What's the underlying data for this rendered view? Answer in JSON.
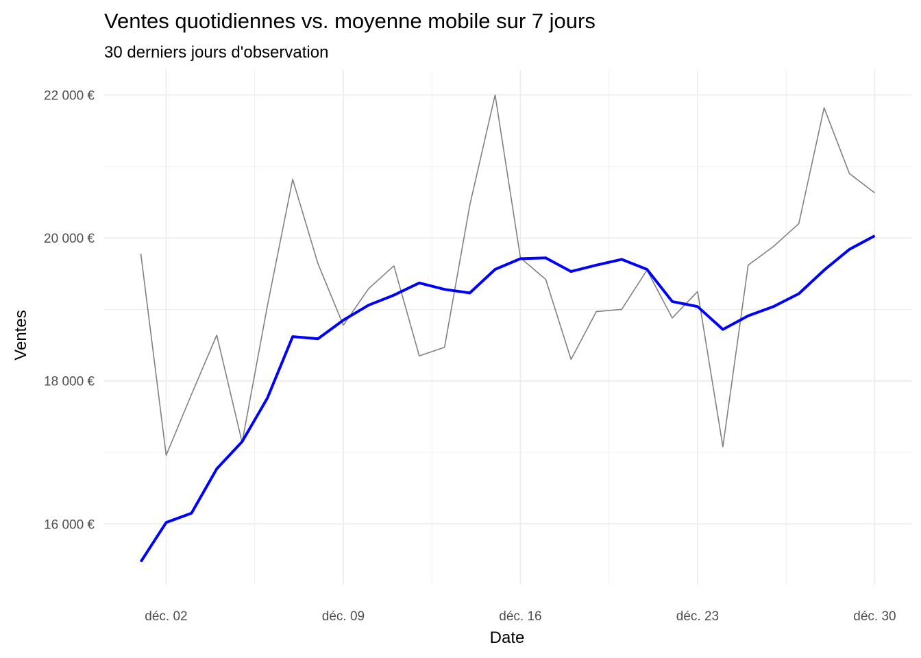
{
  "chart_data": {
    "type": "line",
    "title": "Ventes quotidiennes vs. moyenne mobile sur 7 jours",
    "subtitle": "30 derniers jours d'observation",
    "xlabel": "Date",
    "ylabel": "Ventes",
    "x": [
      "2024-12-01",
      "2024-12-02",
      "2024-12-03",
      "2024-12-04",
      "2024-12-05",
      "2024-12-06",
      "2024-12-07",
      "2024-12-08",
      "2024-12-09",
      "2024-12-10",
      "2024-12-11",
      "2024-12-12",
      "2024-12-13",
      "2024-12-14",
      "2024-12-15",
      "2024-12-16",
      "2024-12-17",
      "2024-12-18",
      "2024-12-19",
      "2024-12-20",
      "2024-12-21",
      "2024-12-22",
      "2024-12-23",
      "2024-12-24",
      "2024-12-25",
      "2024-12-26",
      "2024-12-27",
      "2024-12-28",
      "2024-12-29",
      "2024-12-30"
    ],
    "x_ticks": [
      "déc. 02",
      "déc. 09",
      "déc. 16",
      "déc. 23",
      "déc. 30"
    ],
    "y_ticks": [
      "16 000 €",
      "18 000 €",
      "20 000 €",
      "22 000 €"
    ],
    "y_tick_values": [
      16000,
      18000,
      20000,
      22000
    ],
    "ylim": [
      15150,
      22350
    ],
    "grid": true,
    "series": [
      {
        "role": "daily",
        "color": "#808080",
        "values": [
          19780,
          16960,
          17810,
          18640,
          17140,
          19050,
          20820,
          19640,
          18780,
          19290,
          19610,
          18350,
          18470,
          20460,
          22000,
          19720,
          19420,
          18300,
          18970,
          19000,
          19550,
          18880,
          19250,
          17080,
          19620,
          19880,
          20200,
          21820,
          20900,
          20630
        ]
      },
      {
        "role": "moving-average-7",
        "color": "#0000ff",
        "values": [
          15470,
          16020,
          16150,
          16770,
          17150,
          17760,
          18620,
          18590,
          18850,
          19060,
          19200,
          19370,
          19280,
          19230,
          19560,
          19710,
          19720,
          19530,
          19620,
          19700,
          19560,
          19110,
          19040,
          18720,
          18910,
          19040,
          19220,
          19550,
          19840,
          20030
        ]
      }
    ]
  }
}
